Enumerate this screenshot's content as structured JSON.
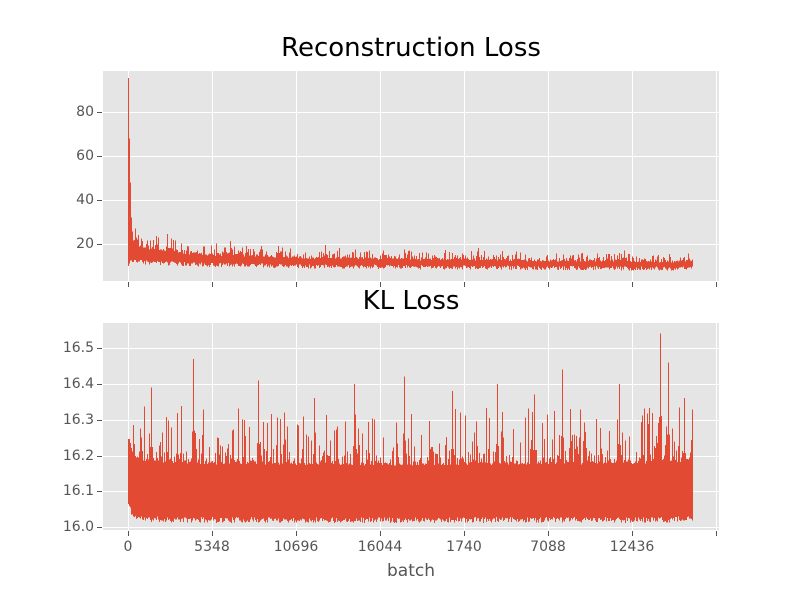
{
  "figure": {
    "background": "#ffffff",
    "panel_background": "#e5e5e5",
    "grid_color": "#ffffff",
    "line_color": "#e24a33",
    "tick_color": "#555555",
    "tick_label_color": "#555555",
    "title_color": "#000000",
    "axis_label_color": "#555555"
  },
  "chart_data": [
    {
      "type": "line",
      "title": "Reconstruction Loss",
      "color": "#e24a33",
      "grid": true,
      "legend": "none",
      "ylim": [
        3.2,
        98.7
      ],
      "yticks": [
        20,
        40,
        60,
        80
      ],
      "ytick_labels": [
        "20",
        "40",
        "60",
        "80"
      ],
      "xtick_labels": [],
      "envelope": [
        [
          0.0,
          9.5,
          95.5
        ],
        [
          0.002,
          11.5,
          70.0
        ],
        [
          0.005,
          12.5,
          42.0
        ],
        [
          0.01,
          12.3,
          31.0
        ],
        [
          0.02,
          12.0,
          27.0
        ],
        [
          0.04,
          11.6,
          24.5
        ],
        [
          0.07,
          11.2,
          23.0
        ],
        [
          0.11,
          10.8,
          21.5
        ],
        [
          0.16,
          10.5,
          20.5
        ],
        [
          0.23,
          10.2,
          19.5
        ],
        [
          0.32,
          9.9,
          18.5
        ],
        [
          0.45,
          9.6,
          17.8
        ],
        [
          0.6,
          9.3,
          17.2
        ],
        [
          0.75,
          9.1,
          16.6
        ],
        [
          0.88,
          8.9,
          16.2
        ],
        [
          1.0,
          8.8,
          16.0
        ]
      ],
      "spikes": [
        [
          0.0,
          95.5
        ],
        [
          0.0018,
          68.0
        ],
        [
          0.0035,
          48.0
        ],
        [
          0.07,
          24.5
        ],
        [
          0.18,
          21.5
        ],
        [
          0.35,
          19.5
        ],
        [
          0.62,
          18.2
        ],
        [
          0.88,
          17.0
        ]
      ],
      "noise": {
        "seed": 3,
        "jitter": 2.0,
        "core": 0.45,
        "pow": 3
      }
    },
    {
      "type": "line",
      "title": "KL Loss",
      "xlabel": "batch",
      "color": "#e24a33",
      "grid": true,
      "legend": "none",
      "ylim": [
        15.992,
        16.57
      ],
      "yticks": [
        16.0,
        16.1,
        16.2,
        16.3,
        16.4,
        16.5
      ],
      "ytick_labels": [
        "16.0",
        "16.1",
        "16.2",
        "16.3",
        "16.4",
        "16.5"
      ],
      "xtick_labels": [
        "0",
        "5348",
        "10696",
        "16044",
        "1740",
        "7088",
        "12436",
        ""
      ],
      "envelope": [
        [
          0.0,
          16.065,
          16.4
        ],
        [
          0.008,
          16.03,
          16.37
        ],
        [
          0.03,
          16.022,
          16.35
        ],
        [
          0.1,
          16.02,
          16.34
        ],
        [
          0.5,
          16.02,
          16.33
        ],
        [
          0.9,
          16.02,
          16.34
        ],
        [
          1.0,
          16.022,
          16.35
        ]
      ],
      "spikes": [
        [
          0.04,
          16.39
        ],
        [
          0.115,
          16.47
        ],
        [
          0.23,
          16.41
        ],
        [
          0.33,
          16.36
        ],
        [
          0.4,
          16.4
        ],
        [
          0.49,
          16.42
        ],
        [
          0.575,
          16.38
        ],
        [
          0.655,
          16.4
        ],
        [
          0.72,
          16.37
        ],
        [
          0.77,
          16.44
        ],
        [
          0.87,
          16.4
        ],
        [
          0.943,
          16.54
        ],
        [
          0.958,
          16.46
        ],
        [
          0.985,
          16.36
        ]
      ],
      "noise": {
        "seed": 11,
        "jitter": 0.016,
        "core": 0.5,
        "pow": 4
      }
    }
  ]
}
